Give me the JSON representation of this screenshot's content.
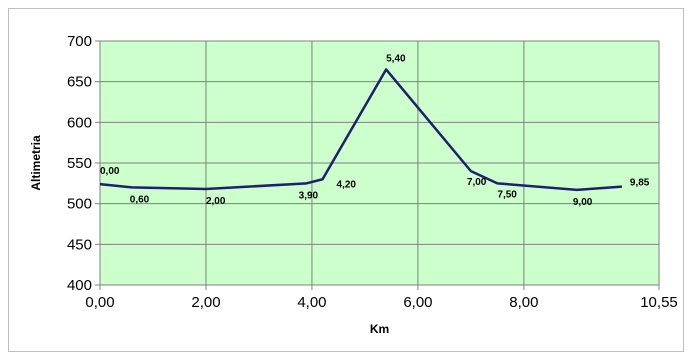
{
  "chart_data": {
    "type": "line",
    "title": "",
    "xlabel": "Km",
    "ylabel": "Altimetria",
    "xlim": [
      0,
      10.55
    ],
    "ylim": [
      400,
      700
    ],
    "x_ticks": [
      {
        "value": 0,
        "label": "0,00"
      },
      {
        "value": 2,
        "label": "2,00"
      },
      {
        "value": 4,
        "label": "4,00"
      },
      {
        "value": 6,
        "label": "6,00"
      },
      {
        "value": 8,
        "label": "8,00"
      },
      {
        "value": 10.55,
        "label": "10,55"
      }
    ],
    "y_ticks": [
      {
        "value": 400,
        "label": "400"
      },
      {
        "value": 450,
        "label": "450"
      },
      {
        "value": 500,
        "label": "500"
      },
      {
        "value": 550,
        "label": "550"
      },
      {
        "value": 600,
        "label": "600"
      },
      {
        "value": 650,
        "label": "650"
      },
      {
        "value": 700,
        "label": "700"
      }
    ],
    "grid": true,
    "legend": false,
    "colors": {
      "plot_background": "#ccffcc",
      "line": "#1f1f6e",
      "grid": "#808080"
    },
    "series": [
      {
        "points": [
          {
            "x": 0.0,
            "y": 524,
            "label": "0,00"
          },
          {
            "x": 0.6,
            "y": 520,
            "label": "0,60"
          },
          {
            "x": 2.0,
            "y": 518,
            "label": "2,00"
          },
          {
            "x": 3.9,
            "y": 525,
            "label": "3,90"
          },
          {
            "x": 4.2,
            "y": 530,
            "label": "4,20"
          },
          {
            "x": 5.4,
            "y": 665,
            "label": "5,40"
          },
          {
            "x": 7.0,
            "y": 540,
            "label": "7,00"
          },
          {
            "x": 7.5,
            "y": 525,
            "label": "7,50"
          },
          {
            "x": 9.0,
            "y": 517,
            "label": "9,00"
          },
          {
            "x": 9.85,
            "y": 521,
            "label": "9,85"
          }
        ]
      }
    ]
  }
}
